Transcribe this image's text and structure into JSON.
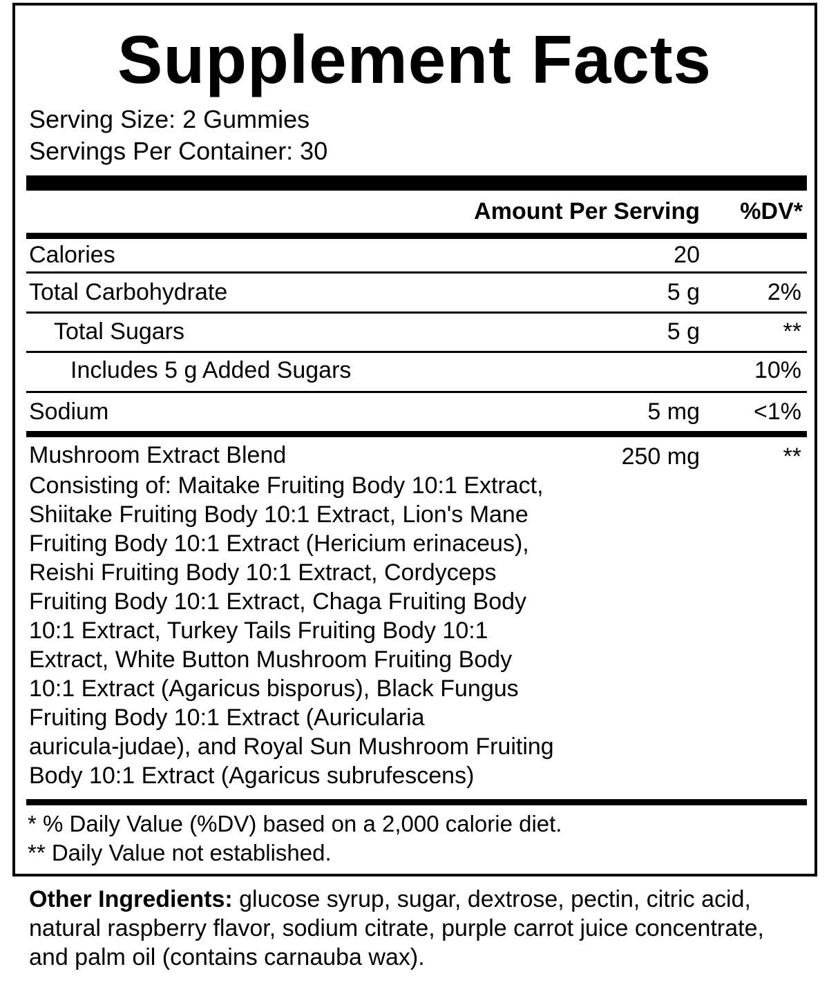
{
  "title": "Supplement Facts",
  "serving_size": "Serving Size: 2 Gummies",
  "servings_per_container": "Servings Per Container: 30",
  "header": {
    "amount": "Amount Per Serving",
    "dv": "%DV*"
  },
  "rows": [
    {
      "name": "Calories",
      "amount": "20",
      "dv": ""
    },
    {
      "name": "Total Carbohydrate",
      "amount": "5 g",
      "dv": "2%"
    },
    {
      "name": "Total Sugars",
      "amount": "5 g",
      "dv": "**"
    },
    {
      "name": "Includes 5 g Added Sugars",
      "amount": "",
      "dv": "10%"
    },
    {
      "name": "Sodium",
      "amount": "5 mg",
      "dv": "<1%"
    }
  ],
  "blend": {
    "name": "Mushroom Extract Blend",
    "amount": "250 mg",
    "dv": "**",
    "ingredients": "Consisting of: Maitake Fruiting Body 10:1 Extract,\nShiitake Fruiting Body 10:1 Extract, Lion's Mane\nFruiting Body 10:1 Extract (Hericium erinaceus),\nReishi Fruiting Body 10:1 Extract, Cordyceps\nFruiting Body 10:1 Extract, Chaga Fruiting Body\n10:1 Extract, Turkey Tails Fruiting Body 10:1\nExtract, White Button Mushroom Fruiting Body\n10:1 Extract (Agaricus bisporus), Black Fungus\nFruiting Body 10:1 Extract (Auricularia\nauricula-judae), and Royal Sun Mushroom Fruiting\nBody 10:1 Extract (Agaricus subrufescens)"
  },
  "footnotes": [
    "* % Daily Value (%DV) based on a 2,000 calorie diet.",
    "** Daily Value not established."
  ],
  "other_ingredients": {
    "label": "Other Ingredients:",
    "text": " glucose syrup, sugar, dextrose, pectin, citric acid, natural raspberry flavor, sodium citrate, purple carrot juice concentrate, and palm oil (contains carnauba wax)."
  }
}
